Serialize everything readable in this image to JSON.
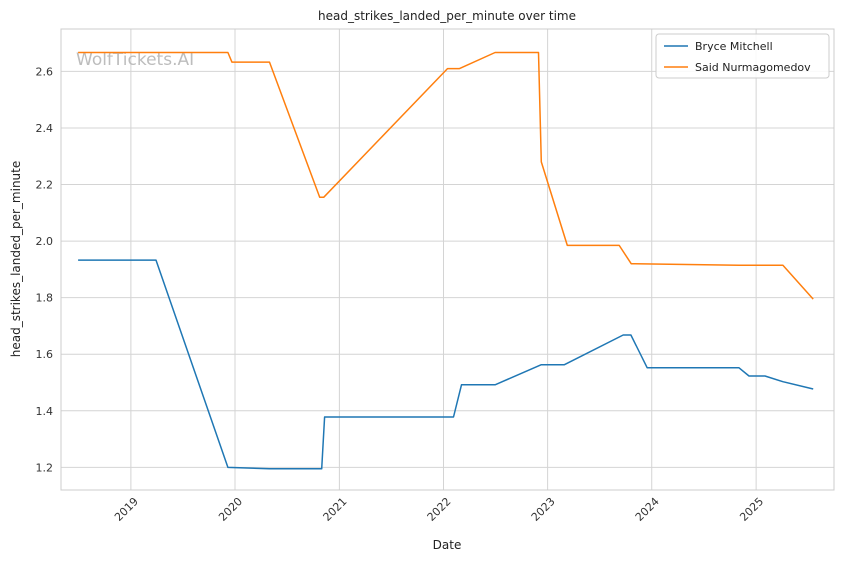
{
  "watermark": "WolfTickets.AI",
  "chart_data": {
    "type": "line",
    "title": "head_strikes_landed_per_minute over time",
    "xlabel": "Date",
    "ylabel": "head_strikes_landed_per_minute",
    "x_ticks": [
      "2019",
      "2020",
      "2021",
      "2022",
      "2023",
      "2024",
      "2025"
    ],
    "y_ticks": [
      "1.2",
      "1.4",
      "1.6",
      "1.8",
      "2.0",
      "2.2",
      "2.4",
      "2.6"
    ],
    "ylim": [
      1.12,
      2.75
    ],
    "xlim": [
      "2018-05-01",
      "2025-10-01"
    ],
    "grid": true,
    "legend_position": "top-right",
    "series": [
      {
        "name": "Bryce Mitchell",
        "color": "#1f77b4",
        "points": [
          [
            "2018-06-30",
            1.933
          ],
          [
            "2019-03-30",
            1.933
          ],
          [
            "2019-12-07",
            1.2
          ],
          [
            "2020-05-01",
            1.195
          ],
          [
            "2020-10-31",
            1.195
          ],
          [
            "2020-11-10",
            1.378
          ],
          [
            "2022-02-05",
            1.378
          ],
          [
            "2022-03-05",
            1.492
          ],
          [
            "2022-07-01",
            1.492
          ],
          [
            "2022-12-10",
            1.563
          ],
          [
            "2023-03-01",
            1.563
          ],
          [
            "2023-09-23",
            1.668
          ],
          [
            "2023-10-20",
            1.668
          ],
          [
            "2023-12-16",
            1.552
          ],
          [
            "2024-11-02",
            1.552
          ],
          [
            "2024-12-07",
            1.523
          ],
          [
            "2025-02-01",
            1.523
          ],
          [
            "2025-04-05",
            1.503
          ],
          [
            "2025-07-20",
            1.477
          ]
        ]
      },
      {
        "name": "Said Nurmagomedov",
        "color": "#ff7f0e",
        "points": [
          [
            "2018-06-30",
            2.667
          ],
          [
            "2019-12-07",
            2.667
          ],
          [
            "2019-12-21",
            2.633
          ],
          [
            "2020-05-01",
            2.633
          ],
          [
            "2020-10-24",
            2.155
          ],
          [
            "2020-11-07",
            2.155
          ],
          [
            "2022-01-15",
            2.61
          ],
          [
            "2022-02-26",
            2.61
          ],
          [
            "2022-07-01",
            2.667
          ],
          [
            "2022-11-30",
            2.667
          ],
          [
            "2022-12-10",
            2.28
          ],
          [
            "2023-03-11",
            1.985
          ],
          [
            "2023-09-09",
            1.985
          ],
          [
            "2023-10-21",
            1.92
          ],
          [
            "2024-11-02",
            1.915
          ],
          [
            "2025-04-05",
            1.915
          ],
          [
            "2025-07-20",
            1.795
          ]
        ]
      }
    ]
  }
}
